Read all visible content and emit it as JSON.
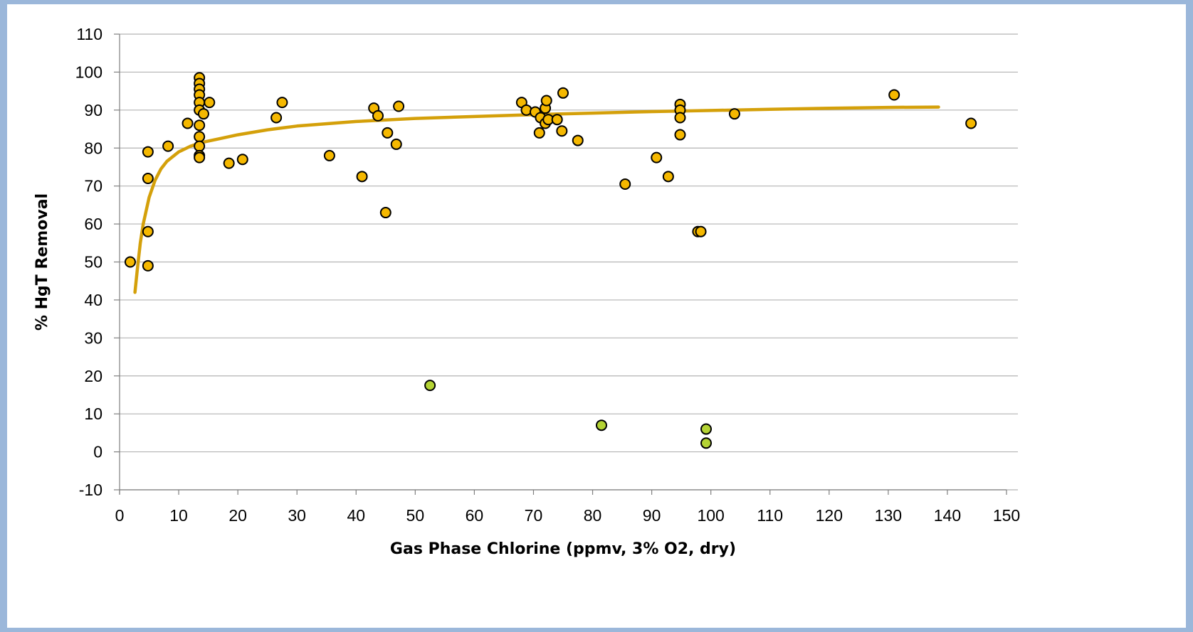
{
  "chart_data": {
    "type": "scatter",
    "title": "",
    "xlabel": "Gas Phase Chlorine (ppmv, 3% O2, dry)",
    "ylabel": "% HgT Removal",
    "xlim": [
      0,
      150
    ],
    "ylim": [
      -10,
      110
    ],
    "x_ticks": [
      0,
      10,
      20,
      30,
      40,
      50,
      60,
      70,
      80,
      90,
      100,
      110,
      120,
      130,
      140,
      150
    ],
    "y_ticks": [
      -10,
      0,
      10,
      20,
      30,
      40,
      50,
      60,
      70,
      80,
      90,
      100,
      110
    ],
    "grid": "horizontal",
    "legend": "none",
    "colors": {
      "orange_points": "#f5b800",
      "green_points": "#b4d334",
      "trend": "#d4a00a",
      "grid": "#b3b3b3"
    },
    "series": [
      {
        "marker": "circle",
        "color": "#f5b800",
        "points": [
          [
            1.8,
            50
          ],
          [
            4.8,
            79
          ],
          [
            4.8,
            72
          ],
          [
            4.8,
            58
          ],
          [
            4.8,
            49
          ],
          [
            8.2,
            80.5
          ],
          [
            11.5,
            86.5
          ],
          [
            13.5,
            98.5
          ],
          [
            13.5,
            97
          ],
          [
            13.5,
            95.5
          ],
          [
            13.5,
            94
          ],
          [
            13.5,
            92
          ],
          [
            13.5,
            90
          ],
          [
            13.5,
            86
          ],
          [
            13.5,
            83
          ],
          [
            13.5,
            80.5
          ],
          [
            13.5,
            78
          ],
          [
            13.5,
            77.5
          ],
          [
            14.2,
            89
          ],
          [
            15.2,
            92
          ],
          [
            18.5,
            76
          ],
          [
            20.8,
            77
          ],
          [
            26.5,
            88
          ],
          [
            27.5,
            92
          ],
          [
            35.5,
            78
          ],
          [
            41,
            72.5
          ],
          [
            43,
            90.5
          ],
          [
            43.7,
            88.5
          ],
          [
            45,
            63
          ],
          [
            45.3,
            84
          ],
          [
            46.8,
            81
          ],
          [
            47.2,
            91
          ],
          [
            68,
            92
          ],
          [
            68.8,
            90
          ],
          [
            70.3,
            89.5
          ],
          [
            71,
            84
          ],
          [
            71.2,
            88
          ],
          [
            72,
            86.5
          ],
          [
            72,
            90.5
          ],
          [
            72.2,
            92.5
          ],
          [
            72.5,
            87.5
          ],
          [
            74,
            87.5
          ],
          [
            74.8,
            84.5
          ],
          [
            75,
            94.5
          ],
          [
            77.5,
            82
          ],
          [
            85.5,
            70.5
          ],
          [
            90.8,
            77.5
          ],
          [
            92.8,
            72.5
          ],
          [
            94.8,
            91.5
          ],
          [
            94.8,
            90
          ],
          [
            94.8,
            88
          ],
          [
            94.8,
            83.5
          ],
          [
            97.8,
            58
          ],
          [
            98.3,
            58
          ],
          [
            104,
            89
          ],
          [
            131,
            94
          ],
          [
            144,
            86.5
          ]
        ]
      },
      {
        "marker": "circle",
        "color": "#b4d334",
        "points": [
          [
            52.5,
            17.5
          ],
          [
            81.5,
            7
          ],
          [
            99.2,
            6
          ],
          [
            99.2,
            2.3
          ]
        ]
      }
    ],
    "trendline": {
      "type": "curve",
      "color": "#d4a00a",
      "points": [
        [
          2.6,
          42
        ],
        [
          3,
          48
        ],
        [
          3.5,
          55
        ],
        [
          4,
          60
        ],
        [
          5,
          67
        ],
        [
          6,
          71.5
        ],
        [
          7,
          74.5
        ],
        [
          8,
          76.5
        ],
        [
          10,
          79
        ],
        [
          12,
          80.5
        ],
        [
          14,
          81.5
        ],
        [
          17,
          82.5
        ],
        [
          20,
          83.5
        ],
        [
          25,
          84.8
        ],
        [
          30,
          85.8
        ],
        [
          40,
          87
        ],
        [
          50,
          87.8
        ],
        [
          60,
          88.3
        ],
        [
          70,
          88.8
        ],
        [
          80,
          89.2
        ],
        [
          90,
          89.6
        ],
        [
          100,
          89.9
        ],
        [
          110,
          90.2
        ],
        [
          120,
          90.5
        ],
        [
          130,
          90.7
        ],
        [
          138.5,
          90.8
        ]
      ]
    }
  }
}
